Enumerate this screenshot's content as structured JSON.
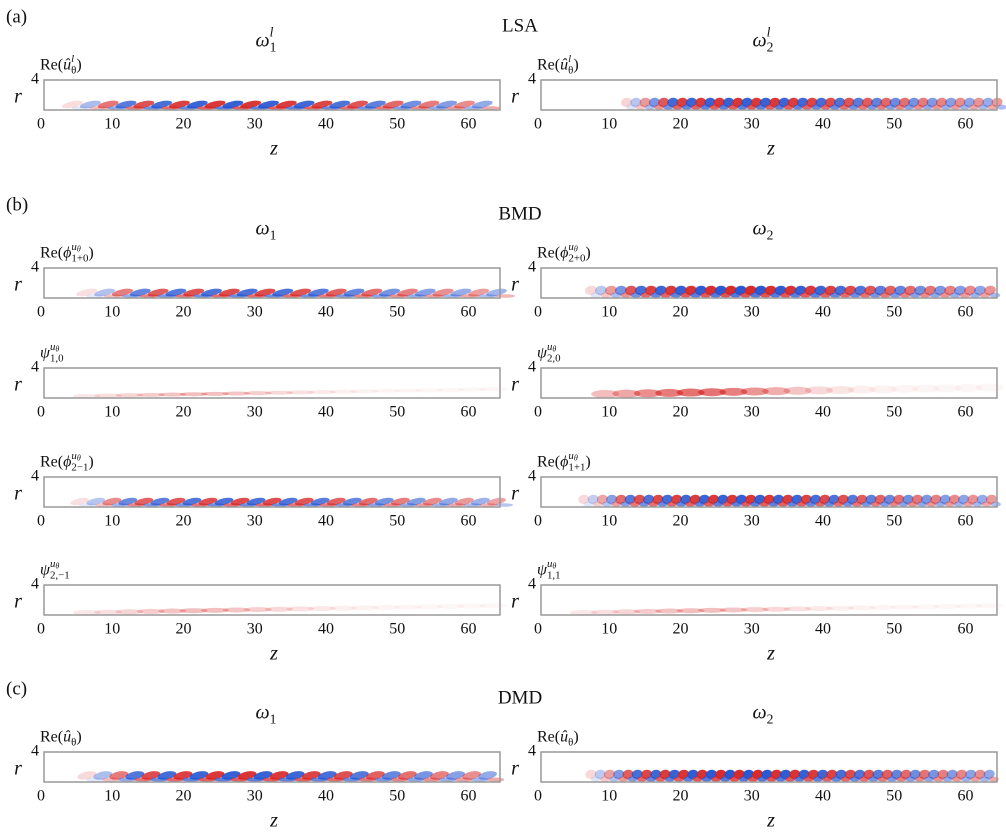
{
  "axes": {
    "xticks": [
      0,
      10,
      20,
      30,
      40,
      50,
      60
    ],
    "xlim": [
      0,
      64
    ],
    "yticks": [
      4
    ],
    "ylim": [
      0,
      4
    ],
    "ylabel": "r",
    "xlabel": "z"
  },
  "sections": [
    {
      "label": "(a)",
      "method": "LSA",
      "titles": [
        [
          {
            "t": "ω",
            "sub": "1",
            "sup": "l"
          }
        ],
        [
          {
            "t": "ω",
            "sub": "2",
            "sup": "l"
          }
        ]
      ],
      "rows": [
        [
          [
            {
              "t": "Re("
            },
            {
              "t": "û",
              "sub": "θ",
              "sup": "l"
            },
            {
              "t": ")"
            }
          ],
          [
            {
              "t": "Re("
            },
            {
              "t": "û",
              "sub": "θ",
              "sup": "l"
            },
            {
              "t": ")"
            }
          ]
        ]
      ]
    },
    {
      "label": "(b)",
      "method": "BMD",
      "titles": [
        [
          {
            "t": "ω",
            "sub": "1"
          }
        ],
        [
          {
            "t": "ω",
            "sub": "2"
          }
        ]
      ],
      "rows": [
        [
          [
            {
              "t": "Re("
            },
            {
              "t": "ϕ",
              "sub": "1+0",
              "sup": "u",
              "supsub": "θ"
            },
            {
              "t": ")"
            }
          ],
          [
            {
              "t": "Re("
            },
            {
              "t": "ϕ",
              "sub": "2+0",
              "sup": "u",
              "supsub": "θ"
            },
            {
              "t": ")"
            }
          ]
        ],
        [
          [
            {
              "t": "ψ",
              "sub": "1,0",
              "sup": "u",
              "supsub": "θ"
            }
          ],
          [
            {
              "t": "ψ",
              "sub": "2,0",
              "sup": "u",
              "supsub": "θ"
            }
          ]
        ],
        [
          [
            {
              "t": "Re("
            },
            {
              "t": "ϕ",
              "sub": "2−1",
              "sup": "u",
              "supsub": "θ"
            },
            {
              "t": ")"
            }
          ],
          [
            {
              "t": "Re("
            },
            {
              "t": "ϕ",
              "sub": "1+1",
              "sup": "u",
              "supsub": "θ"
            },
            {
              "t": ")"
            }
          ]
        ],
        [
          [
            {
              "t": "ψ",
              "sub": "2,−1",
              "sup": "u",
              "supsub": "θ"
            }
          ],
          [
            {
              "t": "ψ",
              "sub": "1,1",
              "sup": "u",
              "supsub": "θ"
            }
          ]
        ]
      ]
    },
    {
      "label": "(c)",
      "method": "DMD",
      "titles": [
        [
          {
            "t": "ω",
            "sub": "1"
          }
        ],
        [
          {
            "t": "ω",
            "sub": "2"
          }
        ]
      ],
      "rows": [
        [
          [
            {
              "t": "Re("
            },
            {
              "t": "û",
              "sub": "θ"
            },
            {
              "t": ")"
            }
          ],
          [
            {
              "t": "Re("
            },
            {
              "t": "û",
              "sub": "θ"
            },
            {
              "t": ")"
            }
          ]
        ]
      ]
    }
  ]
}
